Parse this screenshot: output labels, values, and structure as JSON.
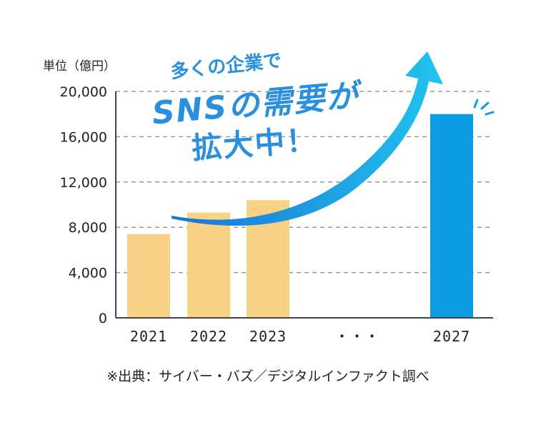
{
  "headline": {
    "line1": "多くの企業で",
    "line2": "SNSの需要が",
    "line3": "拡大中！"
  },
  "unit_label": "単位（億円）",
  "source_note": "※出典：サイバー・バズ／デジタルインファクト調べ",
  "colors": {
    "past_bar": "#f8d287",
    "forecast_bar": "#0d9be2",
    "arrow_start": "#1a73d6",
    "arrow_end": "#21c3ee",
    "headline": "#2a8fdd",
    "grid": "#9a9a9a",
    "axis": "#444444"
  },
  "chart_data": {
    "type": "bar",
    "categories": [
      "2021",
      "2022",
      "2023",
      "・・・",
      "2027"
    ],
    "values": [
      7400,
      9300,
      10400,
      null,
      18000
    ],
    "ylim": [
      0,
      20000
    ],
    "yticks": [
      "0",
      "4,000",
      "8,000",
      "12,000",
      "16,000",
      "20,000"
    ],
    "ylabel": "単位（億円）",
    "grid": true,
    "highlight_category": "2027"
  }
}
